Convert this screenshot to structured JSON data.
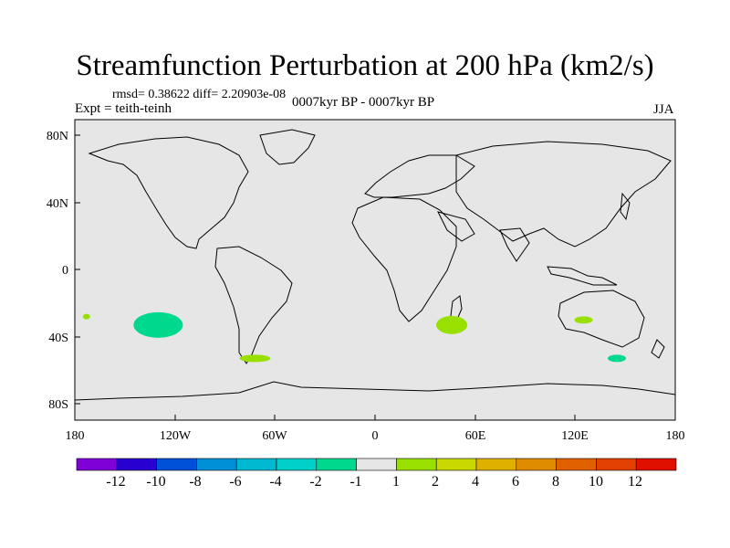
{
  "header": {
    "title": "Streamfunction Perturbation at 200 hPa (km2/s)",
    "stats": "rmsd= 0.38622 diff= 2.20903e-08",
    "experiment": "Expt = teith-teinh",
    "period": "0007kyr BP - 0007kyr BP",
    "season": "JJA"
  },
  "map": {
    "projection": "cylindrical equidistant",
    "background_color": "#e6e6e6",
    "lat_ticks": [
      "80N",
      "40N",
      "0",
      "40S",
      "80S"
    ],
    "lon_ticks": [
      "180",
      "120W",
      "60W",
      "0",
      "60E",
      "120E",
      "180"
    ],
    "anomalies": [
      {
        "name": "south-pacific-anomaly",
        "lon": -130,
        "lat": -33,
        "color": "#00d88e"
      },
      {
        "name": "west-pacific-small-anomaly",
        "lon": -173,
        "lat": -28,
        "color": "#99e000"
      },
      {
        "name": "patagonia-anomaly",
        "lon": -72,
        "lat": -53,
        "color": "#99e000"
      },
      {
        "name": "south-indian-anomaly",
        "lon": 46,
        "lat": -33,
        "color": "#99e000"
      },
      {
        "name": "australia-anomaly",
        "lon": 125,
        "lat": -30,
        "color": "#99e000"
      },
      {
        "name": "tasman-anomaly",
        "lon": 145,
        "lat": -53,
        "color": "#00d88e"
      }
    ]
  },
  "colorbar": {
    "colors": [
      "#8000d8",
      "#2800d0",
      "#0050d8",
      "#0090d8",
      "#00b8d0",
      "#00d0c8",
      "#00d88e",
      "#e6e6e6",
      "#99e000",
      "#c8d800",
      "#e0b000",
      "#e08c00",
      "#e06000",
      "#e04000",
      "#e01000"
    ],
    "labels": [
      "-12",
      "-10",
      "-8",
      "-6",
      "-4",
      "-2",
      "-1",
      "1",
      "2",
      "4",
      "6",
      "8",
      "10",
      "12"
    ]
  }
}
